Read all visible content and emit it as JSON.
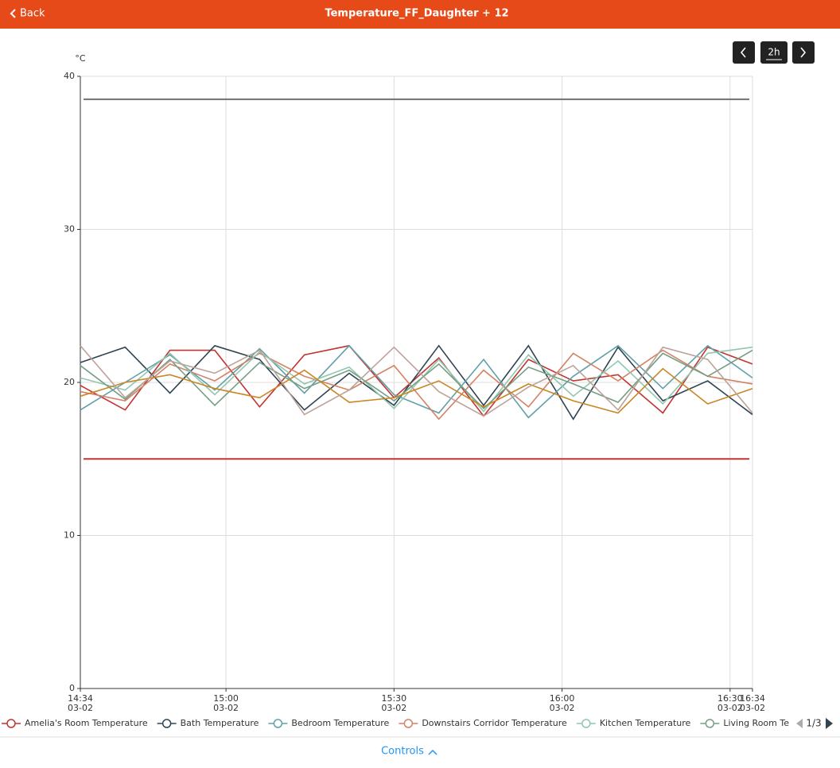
{
  "header": {
    "back": "Back",
    "title": "Temperature_FF_Daughter + 12"
  },
  "controls": {
    "range": "2h",
    "toggle": "Controls"
  },
  "chart_data": {
    "type": "line",
    "y_label": "°C",
    "x": [
      "14:34",
      "14:42",
      "14:50",
      "14:58",
      "15:06",
      "15:14",
      "15:22",
      "15:30",
      "15:38",
      "15:46",
      "15:54",
      "16:02",
      "16:10",
      "16:18",
      "16:26",
      "16:34"
    ],
    "xlim": [
      "14:34",
      "16:34"
    ],
    "xticks": [
      "14:34",
      "15:00",
      "15:30",
      "16:00",
      "16:30",
      "16:34"
    ],
    "x_date": "03-02",
    "ylim": [
      0,
      40
    ],
    "yticks": [
      0,
      10,
      20,
      30,
      40
    ],
    "grid": true,
    "series": [
      {
        "name": "Amelia's Room Temperature",
        "color": "#c23531",
        "values": [
          19.8,
          18.2,
          22.1,
          22.1,
          18.4,
          21.8,
          22.4,
          19.0,
          21.6,
          17.8,
          21.5,
          20.1,
          20.5,
          18.0,
          22.3,
          21.2
        ]
      },
      {
        "name": "Bath Temperature",
        "color": "#2f4554",
        "values": [
          21.3,
          22.3,
          19.3,
          22.4,
          21.5,
          18.2,
          20.6,
          18.5,
          22.4,
          18.5,
          22.4,
          17.6,
          22.3,
          18.8,
          20.1,
          17.9
        ]
      },
      {
        "name": "Bedroom Temperature",
        "color": "#61a0a8",
        "values": [
          18.2,
          20.0,
          21.8,
          19.5,
          22.2,
          19.3,
          22.4,
          19.2,
          18.0,
          21.5,
          17.7,
          20.4,
          22.4,
          19.6,
          22.4,
          20.3
        ]
      },
      {
        "name": "Downstairs Corridor Temperature",
        "color": "#d48265",
        "values": [
          19.4,
          18.8,
          21.2,
          20.1,
          21.9,
          20.4,
          19.5,
          21.1,
          17.6,
          20.8,
          18.4,
          21.9,
          20.1,
          22.1,
          20.4,
          19.9
        ]
      },
      {
        "name": "Kitchen Temperature",
        "color": "#91c7ae",
        "values": [
          20.3,
          19.5,
          21.9,
          19.2,
          22.0,
          19.9,
          21.0,
          18.3,
          21.5,
          18.1,
          21.8,
          19.1,
          21.4,
          18.6,
          21.9,
          22.3
        ]
      },
      {
        "name": "Living Room Tempe",
        "color": "#749f83",
        "values": [
          21.1,
          18.9,
          21.5,
          18.5,
          21.3,
          19.6,
          20.8,
          18.8,
          21.2,
          18.3,
          21.0,
          19.9,
          18.7,
          21.9,
          20.4,
          22.1
        ]
      },
      {
        "color": "#ca8622",
        "values": [
          19.1,
          20.0,
          20.5,
          19.6,
          19.0,
          20.8,
          18.7,
          19.0,
          20.1,
          18.4,
          19.9,
          18.8,
          18.0,
          20.9,
          18.6,
          19.6
        ]
      },
      {
        "color": "#bda29a",
        "values": [
          22.4,
          19.0,
          21.4,
          20.6,
          22.1,
          17.9,
          19.5,
          22.3,
          19.4,
          17.8,
          19.7,
          21.1,
          18.2,
          22.3,
          21.5,
          18.0
        ]
      }
    ],
    "mark_lines": [
      {
        "value": 38.5,
        "color": "#6e7074"
      },
      {
        "value": 15,
        "color": "#c23531"
      }
    ],
    "legend_pager": "1/3"
  }
}
